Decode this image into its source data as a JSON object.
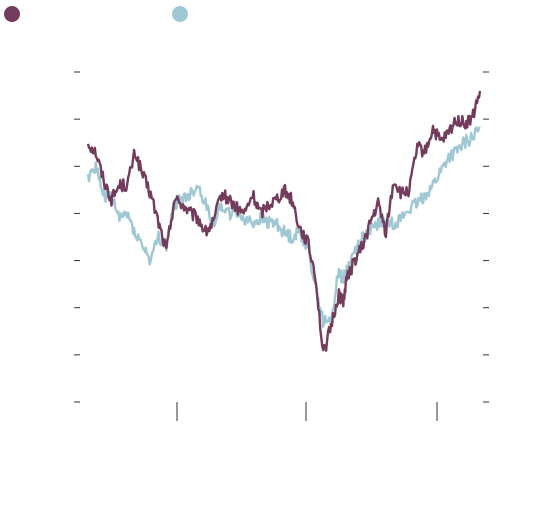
{
  "chart_data": {
    "type": "line",
    "title": "",
    "xlabel": "",
    "ylabel": "",
    "legend": {
      "placement": "top-left"
    },
    "grid": false,
    "y_ticks": 8,
    "x_ticks": 3,
    "colors": {
      "series_a": "#733C5D",
      "series_b": "#A0C8D4"
    },
    "ylim": [
      0,
      7
    ],
    "xlim": [
      0,
      100
    ],
    "series": [
      {
        "color": "#733C5D",
        "x": [
          0,
          2,
          4,
          6,
          8,
          10,
          12,
          14,
          16,
          18,
          20,
          22,
          24,
          26,
          28,
          30,
          32,
          34,
          36,
          38,
          40,
          42,
          44,
          46,
          48,
          50,
          52,
          54,
          56,
          58,
          60,
          62,
          64,
          65,
          66,
          68,
          70,
          72,
          74,
          76,
          78,
          80,
          82,
          84,
          86,
          88,
          90,
          92,
          94,
          96,
          98,
          100
        ],
        "y": [
          5.5,
          5.3,
          4.7,
          4.3,
          4.6,
          4.6,
          5.3,
          4.8,
          4.4,
          3.8,
          3.2,
          4.3,
          4.2,
          4.0,
          3.9,
          3.6,
          3.8,
          4.4,
          4.3,
          4.1,
          4.0,
          4.4,
          4.0,
          4.2,
          4.3,
          4.5,
          4.3,
          3.7,
          3.4,
          2.7,
          1.0,
          1.6,
          2.3,
          2.1,
          2.6,
          3.0,
          3.3,
          3.8,
          4.2,
          3.6,
          4.7,
          4.4,
          4.5,
          5.4,
          5.3,
          5.8,
          5.5,
          5.7,
          6.0,
          5.9,
          6.0,
          6.6
        ]
      },
      {
        "color": "#A0C8D4",
        "x": [
          0,
          2,
          4,
          6,
          8,
          10,
          12,
          14,
          16,
          18,
          20,
          22,
          24,
          26,
          28,
          30,
          32,
          34,
          36,
          38,
          40,
          42,
          44,
          46,
          48,
          50,
          52,
          54,
          56,
          58,
          60,
          62,
          64,
          65,
          66,
          68,
          70,
          72,
          74,
          76,
          78,
          80,
          82,
          84,
          86,
          88,
          90,
          92,
          94,
          96,
          98,
          100
        ],
        "y": [
          4.8,
          5.0,
          4.4,
          4.3,
          3.9,
          4.0,
          3.6,
          3.3,
          3.0,
          3.5,
          3.3,
          4.2,
          4.3,
          4.4,
          4.6,
          4.2,
          3.8,
          4.2,
          4.0,
          4.0,
          3.9,
          3.8,
          3.9,
          3.8,
          3.8,
          3.6,
          3.5,
          3.6,
          3.3,
          2.5,
          1.7,
          1.7,
          2.8,
          2.6,
          2.8,
          3.2,
          3.5,
          3.6,
          3.8,
          3.8,
          3.8,
          3.9,
          4.1,
          4.2,
          4.4,
          4.6,
          4.9,
          5.2,
          5.3,
          5.5,
          5.6,
          5.8
        ]
      }
    ]
  }
}
